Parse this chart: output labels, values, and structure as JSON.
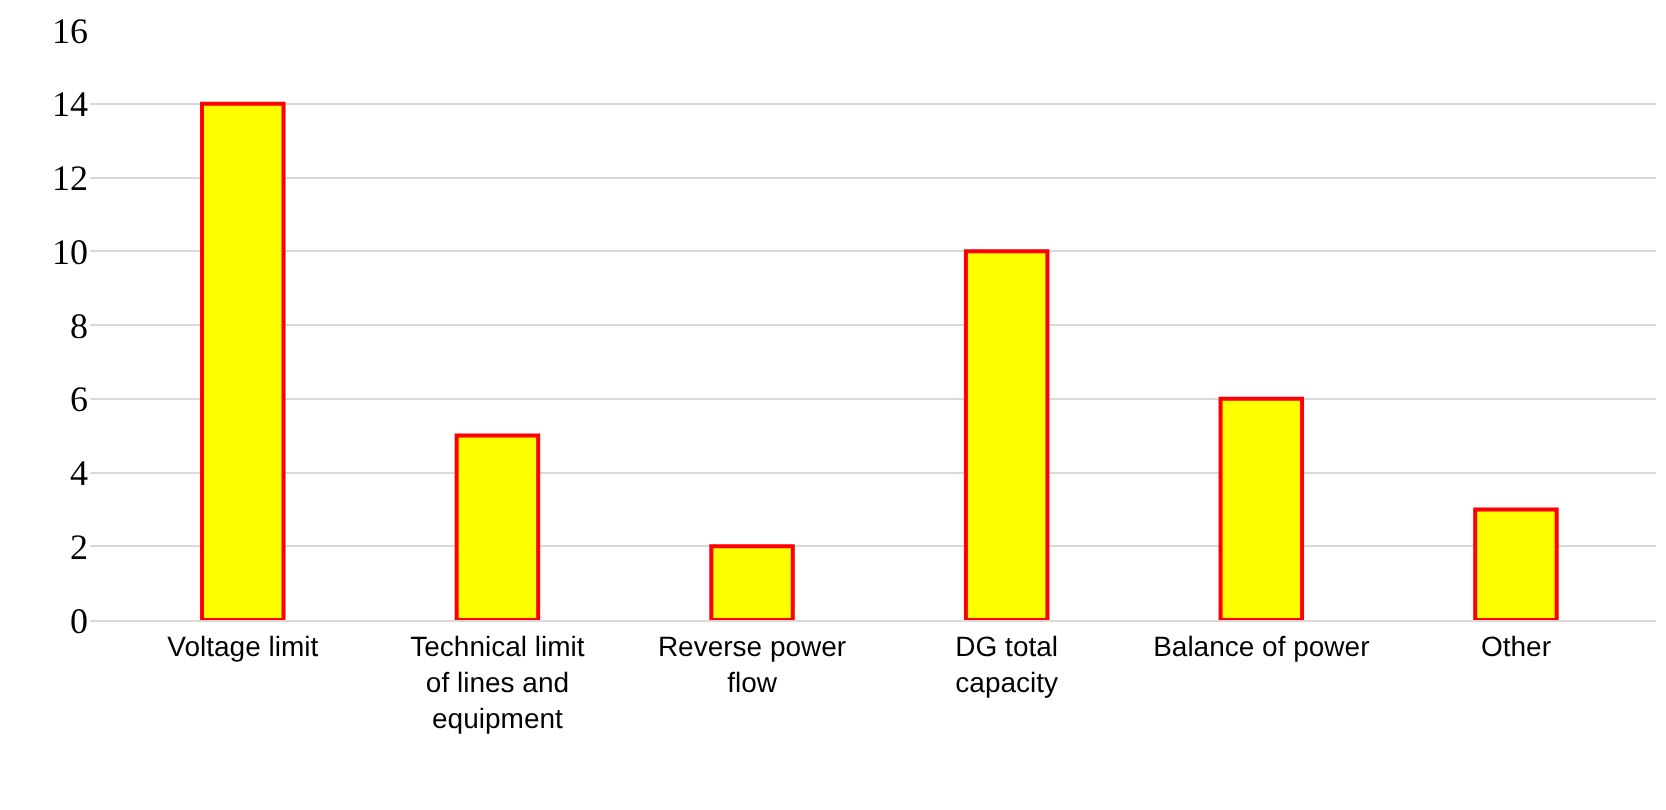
{
  "chart_data": {
    "type": "bar",
    "categories": [
      "Voltage limit",
      "Technical limit of lines and equipment",
      "Reverse power flow",
      "DG total capacity",
      "Balance of power",
      "Other"
    ],
    "values": [
      14,
      5,
      2,
      10,
      6,
      3
    ],
    "color": "#ffff00",
    "ylim": [
      0,
      16
    ],
    "yticks": [
      0,
      2,
      4,
      6,
      8,
      10,
      12,
      14,
      16
    ],
    "grid": "y"
  }
}
